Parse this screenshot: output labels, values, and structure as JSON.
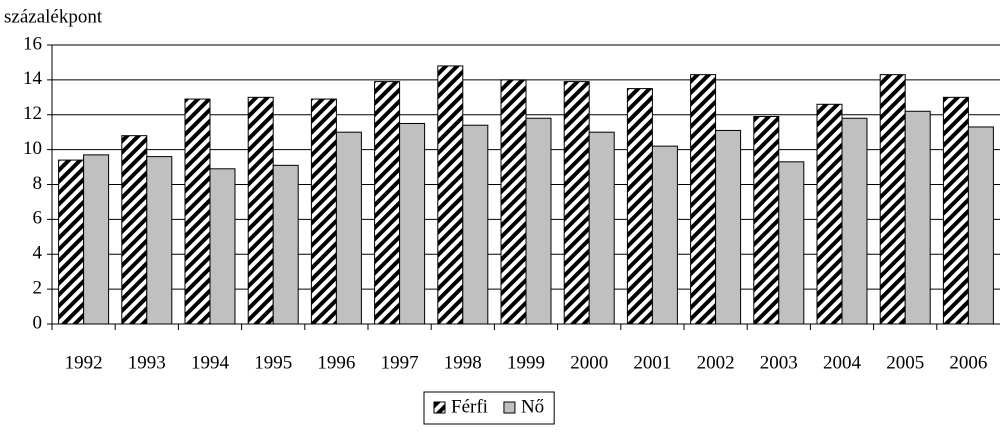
{
  "chart_data": {
    "type": "bar",
    "y_label": "százalékpont",
    "categories": [
      "1992",
      "1993",
      "1994",
      "1995",
      "1996",
      "1997",
      "1998",
      "1999",
      "2000",
      "2001",
      "2002",
      "2003",
      "2004",
      "2005",
      "2006"
    ],
    "series": [
      {
        "name": "Férfi",
        "color": "#000000",
        "pattern": "hatch",
        "values": [
          9.4,
          10.8,
          12.9,
          13.0,
          12.9,
          13.9,
          14.8,
          14.0,
          13.9,
          13.5,
          14.3,
          11.9,
          12.6,
          14.3,
          13.0
        ]
      },
      {
        "name": "Nő",
        "color": "#c0c0c0",
        "values": [
          9.7,
          9.6,
          8.9,
          9.1,
          11.0,
          11.5,
          11.4,
          11.8,
          11.0,
          10.2,
          11.1,
          9.3,
          11.8,
          12.2,
          11.3
        ]
      }
    ],
    "ylim": [
      0,
      16
    ],
    "yticks": [
      0,
      2,
      4,
      6,
      8,
      10,
      12,
      14,
      16
    ],
    "grid": true
  }
}
